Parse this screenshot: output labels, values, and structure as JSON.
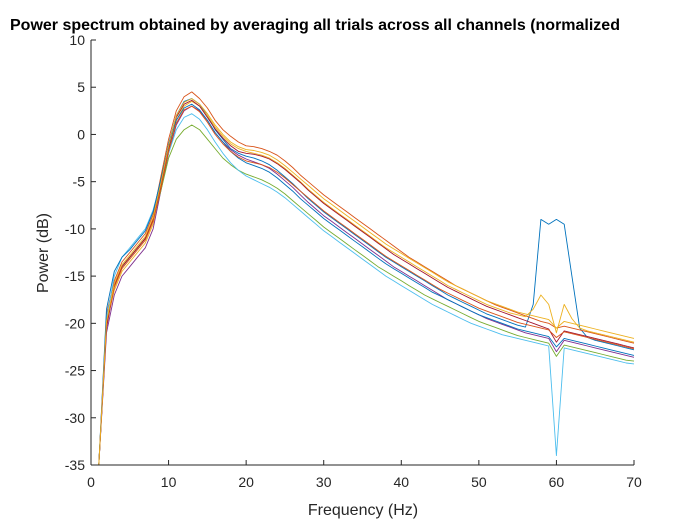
{
  "chart_data": {
    "type": "line",
    "title": "Power spectrum obtained by averaging all trials across all channels (normalized",
    "xlabel": "Frequency (Hz)",
    "ylabel": "Power (dB)",
    "xlim": [
      0,
      70
    ],
    "ylim": [
      -35,
      10
    ],
    "xticks": [
      "0",
      "10",
      "20",
      "30",
      "40",
      "50",
      "60",
      "70"
    ],
    "yticks": [
      "10",
      "5",
      "0",
      "-5",
      "-10",
      "-15",
      "-20",
      "-25",
      "-30",
      "-35"
    ],
    "x": [
      1,
      2,
      3,
      4,
      5,
      6,
      7,
      8,
      9,
      10,
      11,
      12,
      13,
      14,
      15,
      16,
      17,
      18,
      19,
      20,
      21,
      22,
      23,
      24,
      25,
      26,
      27,
      28,
      29,
      30,
      31,
      32,
      33,
      34,
      35,
      36,
      37,
      38,
      39,
      40,
      41,
      42,
      43,
      44,
      45,
      46,
      47,
      48,
      49,
      50,
      51,
      52,
      53,
      54,
      55,
      56,
      57,
      58,
      59,
      60,
      61,
      62,
      63,
      64,
      65,
      66,
      67,
      68,
      69,
      70
    ],
    "series": [
      {
        "color": "#0072BD",
        "values": [
          -35,
          -20,
          -16,
          -14,
          -13,
          -12,
          -11,
          -9,
          -5,
          -1,
          2,
          3.5,
          3.8,
          3.2,
          2,
          0.5,
          -0.5,
          -1.5,
          -2,
          -2.3,
          -2.5,
          -2.8,
          -3.2,
          -3.8,
          -4.5,
          -5.2,
          -6,
          -6.8,
          -7.5,
          -8.2,
          -8.8,
          -9.4,
          -10,
          -10.6,
          -11.2,
          -11.8,
          -12.4,
          -13,
          -13.5,
          -14,
          -14.5,
          -15,
          -15.5,
          -16,
          -16.5,
          -17,
          -17.4,
          -17.8,
          -18.2,
          -18.6,
          -19,
          -19.3,
          -19.6,
          -19.9,
          -20.2,
          -20.4,
          -18,
          -9,
          -9.5,
          -9,
          -9.5,
          -15,
          -20.5,
          -21.5,
          -21.8,
          -22,
          -22.2,
          -22.4,
          -22.6,
          -22.8
        ]
      },
      {
        "color": "#D95319",
        "values": [
          -35,
          -19,
          -15.5,
          -13.5,
          -12.5,
          -11.5,
          -10.5,
          -8.5,
          -4.5,
          -0.5,
          2.5,
          4,
          4.5,
          3.8,
          2.8,
          1.5,
          0.5,
          -0.2,
          -0.8,
          -1.2,
          -1.3,
          -1.5,
          -1.8,
          -2.2,
          -2.8,
          -3.5,
          -4.3,
          -5,
          -5.7,
          -6.4,
          -7,
          -7.6,
          -8.2,
          -8.8,
          -9.4,
          -10,
          -10.6,
          -11.2,
          -11.8,
          -12.4,
          -13,
          -13.5,
          -14,
          -14.5,
          -15,
          -15.5,
          -16,
          -16.4,
          -16.8,
          -17.2,
          -17.6,
          -18,
          -18.3,
          -18.6,
          -18.9,
          -19.2,
          -19.5,
          -19.8,
          -20,
          -20.5,
          -20.3,
          -20.5,
          -20.7,
          -20.9,
          -21.1,
          -21.3,
          -21.5,
          -21.7,
          -21.9,
          -22.1
        ]
      },
      {
        "color": "#EDB120",
        "values": [
          -35,
          -20,
          -16.5,
          -14.5,
          -13.5,
          -12.5,
          -11.5,
          -9.5,
          -5.5,
          -1.5,
          1.5,
          3,
          3.5,
          3,
          2,
          0.8,
          -0.2,
          -1,
          -1.5,
          -1.8,
          -2,
          -2.2,
          -2.5,
          -3,
          -3.6,
          -4.3,
          -5,
          -5.8,
          -6.5,
          -7.2,
          -7.8,
          -8.4,
          -9,
          -9.6,
          -10.2,
          -10.8,
          -11.4,
          -12,
          -12.5,
          -13,
          -13.5,
          -14,
          -14.5,
          -15,
          -15.5,
          -16,
          -16.4,
          -16.8,
          -17.2,
          -17.6,
          -18,
          -18.3,
          -18.6,
          -18.9,
          -19.1,
          -19.3,
          -18.5,
          -17,
          -18,
          -21,
          -18,
          -19.5,
          -20.5,
          -20.8,
          -21,
          -21.2,
          -21.4,
          -21.6,
          -21.8,
          -22
        ]
      },
      {
        "color": "#7E2F8E",
        "values": [
          -35,
          -21,
          -17,
          -15,
          -14,
          -13,
          -12,
          -10,
          -6,
          -2,
          1,
          2.5,
          3,
          2.5,
          1.5,
          0.2,
          -0.8,
          -1.6,
          -2.2,
          -2.6,
          -2.9,
          -3.2,
          -3.6,
          -4.2,
          -4.9,
          -5.6,
          -6.4,
          -7.2,
          -7.9,
          -8.6,
          -9.2,
          -9.8,
          -10.4,
          -11,
          -11.6,
          -12.2,
          -12.8,
          -13.4,
          -14,
          -14.5,
          -15,
          -15.5,
          -16,
          -16.5,
          -17,
          -17.5,
          -17.9,
          -18.3,
          -18.7,
          -19.1,
          -19.5,
          -19.8,
          -20.1,
          -20.4,
          -20.7,
          -21,
          -21.2,
          -21.4,
          -21.6,
          -23,
          -21.8,
          -22,
          -22.2,
          -22.4,
          -22.6,
          -22.8,
          -23,
          -23.2,
          -23.4,
          -23.6
        ]
      },
      {
        "color": "#77AC30",
        "values": [
          -35,
          -20,
          -16,
          -14,
          -13,
          -12,
          -11,
          -9,
          -6,
          -2.5,
          -0.5,
          0.5,
          1,
          0.5,
          -0.5,
          -1.5,
          -2.5,
          -3.2,
          -3.8,
          -4.2,
          -4.5,
          -4.8,
          -5.2,
          -5.7,
          -6.3,
          -7,
          -7.7,
          -8.4,
          -9.1,
          -9.8,
          -10.4,
          -11,
          -11.6,
          -12.2,
          -12.8,
          -13.4,
          -14,
          -14.5,
          -15,
          -15.5,
          -16,
          -16.5,
          -17,
          -17.4,
          -17.8,
          -18.2,
          -18.6,
          -19,
          -19.4,
          -19.8,
          -20.1,
          -20.4,
          -20.7,
          -21,
          -21.3,
          -21.5,
          -21.7,
          -21.9,
          -22.1,
          -23.5,
          -22.3,
          -22.5,
          -22.7,
          -22.9,
          -23.1,
          -23.3,
          -23.5,
          -23.7,
          -23.9,
          -24
        ]
      },
      {
        "color": "#4DBEEE",
        "values": [
          -35,
          -19.5,
          -15,
          -13,
          -12,
          -11,
          -10,
          -8,
          -5,
          -2,
          0.5,
          1.8,
          2.2,
          1.6,
          0.5,
          -0.8,
          -2,
          -3,
          -3.8,
          -4.4,
          -4.8,
          -5.2,
          -5.6,
          -6.1,
          -6.7,
          -7.4,
          -8.1,
          -8.8,
          -9.5,
          -10.2,
          -10.8,
          -11.4,
          -12,
          -12.6,
          -13.2,
          -13.8,
          -14.4,
          -15,
          -15.5,
          -16,
          -16.5,
          -17,
          -17.5,
          -18,
          -18.4,
          -18.8,
          -19.2,
          -19.6,
          -20,
          -20.3,
          -20.6,
          -20.9,
          -21.2,
          -21.4,
          -21.6,
          -21.8,
          -22,
          -22.2,
          -22.4,
          -34,
          -22.6,
          -22.8,
          -23,
          -23.2,
          -23.4,
          -23.6,
          -23.8,
          -24,
          -24.2,
          -24.3
        ]
      },
      {
        "color": "#A2142F",
        "values": [
          -35,
          -20.5,
          -16,
          -14,
          -13,
          -12,
          -11,
          -9,
          -5.5,
          -1.5,
          1.8,
          3.2,
          3.6,
          3,
          1.8,
          0.6,
          -0.4,
          -1.2,
          -1.8,
          -2,
          -2.1,
          -2.3,
          -2.6,
          -3.1,
          -3.7,
          -4.4,
          -5.1,
          -5.9,
          -6.6,
          -7.3,
          -7.9,
          -8.5,
          -9.1,
          -9.7,
          -10.3,
          -10.9,
          -11.5,
          -12.1,
          -12.7,
          -13.2,
          -13.7,
          -14.2,
          -14.7,
          -15.2,
          -15.7,
          -16.2,
          -16.6,
          -17,
          -17.4,
          -17.8,
          -18.2,
          -18.5,
          -18.8,
          -19.1,
          -19.4,
          -19.7,
          -20,
          -20.3,
          -20.6,
          -22,
          -20.8,
          -21,
          -21.2,
          -21.4,
          -21.6,
          -21.8,
          -22,
          -22.2,
          -22.4,
          -22.6
        ]
      },
      {
        "color": "#0072BD",
        "values": [
          -35,
          -18.5,
          -14.5,
          -13,
          -12.2,
          -11.2,
          -10.2,
          -8.2,
          -4.8,
          -1.2,
          1.5,
          2.8,
          3.2,
          2.6,
          1.5,
          0.2,
          -0.8,
          -1.8,
          -2.5,
          -3,
          -3.3,
          -3.6,
          -4,
          -4.6,
          -5.3,
          -6,
          -6.8,
          -7.5,
          -8.2,
          -8.9,
          -9.5,
          -10.1,
          -10.7,
          -11.3,
          -11.9,
          -12.5,
          -13.1,
          -13.7,
          -14.2,
          -14.7,
          -15.2,
          -15.7,
          -16.2,
          -16.7,
          -17.1,
          -17.5,
          -17.9,
          -18.3,
          -18.7,
          -19.1,
          -19.4,
          -19.7,
          -20,
          -20.3,
          -20.6,
          -20.8,
          -21,
          -21.2,
          -21.4,
          -22.5,
          -21.6,
          -21.8,
          -22,
          -22.2,
          -22.4,
          -22.6,
          -22.8,
          -23,
          -23.2,
          -23.4
        ]
      },
      {
        "color": "#D95319",
        "values": [
          -35,
          -20,
          -16.2,
          -14.2,
          -13.2,
          -12.2,
          -11.2,
          -9.2,
          -5.8,
          -1.8,
          1.2,
          2.6,
          3,
          2.4,
          1.3,
          0,
          -1,
          -1.8,
          -2.4,
          -2.8,
          -3,
          -3.2,
          -3.5,
          -4,
          -4.6,
          -5.3,
          -6,
          -6.7,
          -7.4,
          -8.1,
          -8.7,
          -9.3,
          -9.9,
          -10.5,
          -11.1,
          -11.7,
          -12.3,
          -12.9,
          -13.4,
          -13.9,
          -14.4,
          -14.9,
          -15.4,
          -15.9,
          -16.4,
          -16.8,
          -17.2,
          -17.6,
          -18,
          -18.4,
          -18.7,
          -19,
          -19.3,
          -19.6,
          -19.9,
          -20.1,
          -20.3,
          -20.5,
          -20.7,
          -21.5,
          -20.9,
          -21.1,
          -21.3,
          -21.5,
          -21.7,
          -21.9,
          -22.1,
          -22.3,
          -22.5,
          -22.7
        ]
      },
      {
        "color": "#EDB120",
        "values": [
          -35,
          -19.8,
          -15.8,
          -13.8,
          -12.8,
          -11.8,
          -10.8,
          -8.8,
          -5.2,
          -1.2,
          2,
          3.4,
          3.8,
          3.2,
          2.2,
          1,
          0,
          -0.8,
          -1.3,
          -1.6,
          -1.7,
          -1.9,
          -2.2,
          -2.7,
          -3.3,
          -4,
          -4.7,
          -5.4,
          -6.1,
          -6.8,
          -7.4,
          -8,
          -8.6,
          -9.2,
          -9.8,
          -10.4,
          -11,
          -11.6,
          -12.1,
          -12.6,
          -13.1,
          -13.6,
          -14.1,
          -14.6,
          -15.1,
          -15.6,
          -16,
          -16.4,
          -16.8,
          -17.2,
          -17.6,
          -17.9,
          -18.2,
          -18.5,
          -18.8,
          -19,
          -19.2,
          -19.4,
          -19.6,
          -20.5,
          -19.8,
          -20,
          -20.2,
          -20.4,
          -20.6,
          -20.8,
          -21,
          -21.2,
          -21.4,
          -21.6
        ]
      }
    ]
  }
}
